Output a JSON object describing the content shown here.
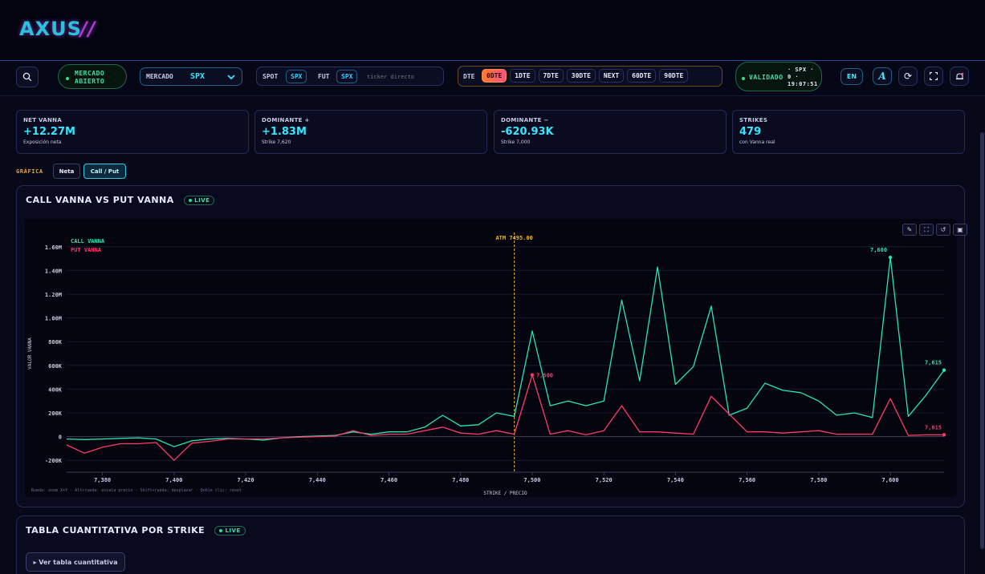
{
  "logo": "AXUS",
  "toolbar": {
    "market_status_line1": "MERCADO",
    "market_status_line2": "ABIERTO",
    "market_label": "MERCADO",
    "market_value": "SPX",
    "spot_label": "SPOT",
    "spot_value": "SPX",
    "fut_label": "FUT",
    "fut_value": "SPX",
    "ticker_placeholder": "ticker directo",
    "dte_label": "DTE",
    "dte_options": [
      "0DTE",
      "1DTE",
      "7DTE",
      "30DTE",
      "NEXT",
      "60DTE",
      "90DTE"
    ],
    "dte_selected": "0DTE",
    "validated_label": "VALIDADO",
    "validated_line1": "· SPX ·",
    "validated_line2": "0 ·",
    "validated_line3": "19:07:51",
    "lang": "EN",
    "font_btn": "A"
  },
  "cards": [
    {
      "label": "NET VANNA",
      "value": "+12.27M",
      "sub": "Exposición neta"
    },
    {
      "label": "DOMINANTE +",
      "value": "+1.83M",
      "sub": "Strike 7,620"
    },
    {
      "label": "DOMINANTE −",
      "value": "-620.93K",
      "sub": "Strike 7,000"
    },
    {
      "label": "STRIKES",
      "value": "479",
      "sub": "con Vanna real"
    }
  ],
  "grafica": {
    "label": "GRÁFICA",
    "toggle_neta": "Neta",
    "toggle_callput": "Call / Put"
  },
  "chart_panel": {
    "title": "CALL VANNA VS PUT VANNA",
    "live": "LIVE"
  },
  "table_panel": {
    "title": "TABLA CUANTITATIVA POR STRIKE",
    "live": "LIVE",
    "button": "▸ Ver tabla cuantitativa"
  },
  "colors": {
    "call": "#27e6b0",
    "put": "#ff3a6a",
    "atm": "#f0b429",
    "accent": "#37e7ff"
  },
  "chart_data": {
    "type": "line",
    "xlabel": "STRIKE / PRECIO",
    "ylabel": "VALOR VANNA",
    "xlim": [
      7370,
      7615
    ],
    "ylim": [
      -300000,
      1700000
    ],
    "x_ticks": [
      "7,380",
      "7,400",
      "7,420",
      "7,440",
      "7,460",
      "7,480",
      "7,500",
      "7,520",
      "7,540",
      "7,560",
      "7,580",
      "7,600"
    ],
    "x_tick_values": [
      7380,
      7400,
      7420,
      7440,
      7460,
      7480,
      7500,
      7520,
      7540,
      7560,
      7580,
      7600
    ],
    "y_ticks": [
      "1.60M",
      "1.40M",
      "1.20M",
      "1.00M",
      "800K",
      "600K",
      "400K",
      "200K",
      "0",
      "-200K"
    ],
    "y_tick_values": [
      1600000,
      1400000,
      1200000,
      1000000,
      800000,
      600000,
      400000,
      200000,
      0,
      -200000
    ],
    "legend_position": "top-left",
    "atm": {
      "x": 7495,
      "label": "ATM 7495.00"
    },
    "hint": "Rueda: zoom X+Y · Alt+rueda: escala precio · Shift+rueda: desplazar · Doble clic: reset",
    "series": [
      {
        "name": "CALL VANNA",
        "x": [
          7370,
          7375,
          7380,
          7385,
          7390,
          7395,
          7400,
          7405,
          7410,
          7415,
          7420,
          7425,
          7430,
          7435,
          7440,
          7445,
          7450,
          7455,
          7460,
          7465,
          7470,
          7475,
          7480,
          7485,
          7490,
          7495,
          7500,
          7505,
          7510,
          7515,
          7520,
          7525,
          7530,
          7535,
          7540,
          7545,
          7550,
          7555,
          7560,
          7565,
          7570,
          7575,
          7580,
          7585,
          7590,
          7595,
          7600,
          7605,
          7610,
          7615
        ],
        "values": [
          -20000,
          -25000,
          -20000,
          -15000,
          -10000,
          -20000,
          -85000,
          -35000,
          -20000,
          -15000,
          -20000,
          -30000,
          -10000,
          0,
          5000,
          10000,
          40000,
          20000,
          40000,
          40000,
          80000,
          180000,
          90000,
          100000,
          200000,
          170000,
          890000,
          260000,
          300000,
          260000,
          300000,
          1150000,
          470000,
          1430000,
          440000,
          590000,
          1100000,
          180000,
          240000,
          450000,
          390000,
          370000,
          300000,
          180000,
          200000,
          160000,
          1510000,
          170000,
          350000,
          560000
        ]
      },
      {
        "name": "PUT VANNA",
        "x": [
          7370,
          7375,
          7380,
          7385,
          7390,
          7395,
          7400,
          7405,
          7410,
          7415,
          7420,
          7425,
          7430,
          7435,
          7440,
          7445,
          7450,
          7455,
          7460,
          7465,
          7470,
          7475,
          7480,
          7485,
          7490,
          7495,
          7500,
          7505,
          7510,
          7515,
          7520,
          7525,
          7530,
          7535,
          7540,
          7545,
          7550,
          7555,
          7560,
          7565,
          7570,
          7575,
          7580,
          7585,
          7590,
          7595,
          7600,
          7605,
          7610,
          7615
        ],
        "values": [
          -70000,
          -140000,
          -90000,
          -60000,
          -60000,
          -50000,
          -200000,
          -55000,
          -40000,
          -20000,
          -20000,
          -20000,
          -10000,
          -5000,
          0,
          5000,
          50000,
          10000,
          20000,
          20000,
          50000,
          80000,
          30000,
          20000,
          50000,
          20000,
          520000,
          20000,
          50000,
          15000,
          50000,
          260000,
          40000,
          40000,
          30000,
          20000,
          340000,
          190000,
          40000,
          40000,
          30000,
          40000,
          50000,
          20000,
          20000,
          20000,
          320000,
          10000,
          15000,
          15000
        ]
      }
    ],
    "annotations": [
      {
        "x": 7500,
        "y": 520000,
        "text": "7,500",
        "series": "PUT VANNA"
      },
      {
        "x": 7600,
        "y": 1510000,
        "text": "7,600",
        "series": "CALL VANNA"
      },
      {
        "x": 7615,
        "y": 560000,
        "text": "7,615",
        "series": "CALL VANNA"
      },
      {
        "x": 7615,
        "y": 15000,
        "text": "7,615",
        "series": "PUT VANNA"
      }
    ]
  }
}
